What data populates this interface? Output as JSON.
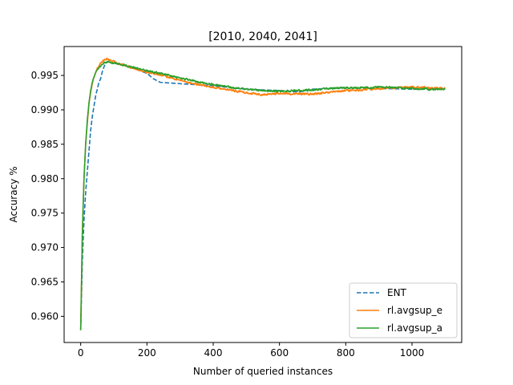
{
  "chart_data": {
    "type": "line",
    "title": "[2010, 2040, 2041]",
    "xlabel": "Number of queried instances",
    "ylabel": "Accuracy %",
    "xlim": [
      -50,
      1150
    ],
    "ylim": [
      0.9562,
      0.9992
    ],
    "xticks": [
      0,
      200,
      400,
      600,
      800,
      1000
    ],
    "yticks": [
      0.96,
      0.965,
      0.97,
      0.975,
      0.98,
      0.985,
      0.99,
      0.995
    ],
    "ytick_labels": [
      "0.960",
      "0.965",
      "0.970",
      "0.975",
      "0.980",
      "0.985",
      "0.990",
      "0.995"
    ],
    "grid": false,
    "legend": "lower-right",
    "series": [
      {
        "name": "ENT",
        "color": "#1f77b4",
        "dash": "dashed",
        "noise": 0.0,
        "x": [
          0,
          5,
          10,
          15,
          20,
          25,
          30,
          35,
          40,
          45,
          50,
          55,
          60,
          65,
          70,
          75,
          80,
          100,
          150,
          200,
          220,
          240,
          300,
          400,
          500,
          600,
          660,
          700,
          800,
          900,
          1000,
          1100
        ],
        "y": [
          0.958,
          0.968,
          0.974,
          0.978,
          0.981,
          0.984,
          0.987,
          0.989,
          0.9905,
          0.992,
          0.993,
          0.994,
          0.9945,
          0.9955,
          0.9962,
          0.9968,
          0.997,
          0.9968,
          0.9962,
          0.9953,
          0.9945,
          0.994,
          0.9938,
          0.9935,
          0.993,
          0.9928,
          0.9926,
          0.993,
          0.9932,
          0.9931,
          0.993,
          0.993
        ]
      },
      {
        "name": "rl.avgsup_e",
        "color": "#ff7f0e",
        "dash": "solid",
        "noise": 0.00022,
        "x": [
          0,
          5,
          10,
          15,
          20,
          25,
          30,
          35,
          40,
          50,
          60,
          70,
          80,
          90,
          100,
          150,
          200,
          250,
          300,
          350,
          400,
          450,
          500,
          550,
          600,
          650,
          700,
          750,
          800,
          850,
          900,
          950,
          1000,
          1050,
          1100
        ],
        "y": [
          0.958,
          0.972,
          0.98,
          0.985,
          0.988,
          0.991,
          0.9925,
          0.9938,
          0.9948,
          0.996,
          0.9968,
          0.9972,
          0.9974,
          0.9972,
          0.997,
          0.9962,
          0.9955,
          0.995,
          0.9943,
          0.9937,
          0.9933,
          0.9929,
          0.9925,
          0.9922,
          0.9924,
          0.9923,
          0.9923,
          0.9925,
          0.9928,
          0.9929,
          0.9931,
          0.9932,
          0.9933,
          0.9932,
          0.9931
        ]
      },
      {
        "name": "rl.avgsup_a",
        "color": "#2ca02c",
        "dash": "solid",
        "noise": 0.0002,
        "x": [
          0,
          5,
          10,
          15,
          20,
          25,
          30,
          35,
          40,
          50,
          60,
          70,
          80,
          90,
          100,
          150,
          200,
          250,
          300,
          350,
          400,
          450,
          500,
          550,
          600,
          650,
          700,
          750,
          800,
          850,
          900,
          950,
          1000,
          1050,
          1100
        ],
        "y": [
          0.958,
          0.972,
          0.98,
          0.985,
          0.9885,
          0.991,
          0.9928,
          0.994,
          0.9948,
          0.9958,
          0.9964,
          0.9968,
          0.997,
          0.9969,
          0.9968,
          0.9963,
          0.9957,
          0.9952,
          0.9946,
          0.9941,
          0.9937,
          0.9933,
          0.993,
          0.9928,
          0.9927,
          0.9928,
          0.9929,
          0.9931,
          0.9932,
          0.9932,
          0.9933,
          0.9932,
          0.9931,
          0.993,
          0.993
        ]
      }
    ]
  }
}
